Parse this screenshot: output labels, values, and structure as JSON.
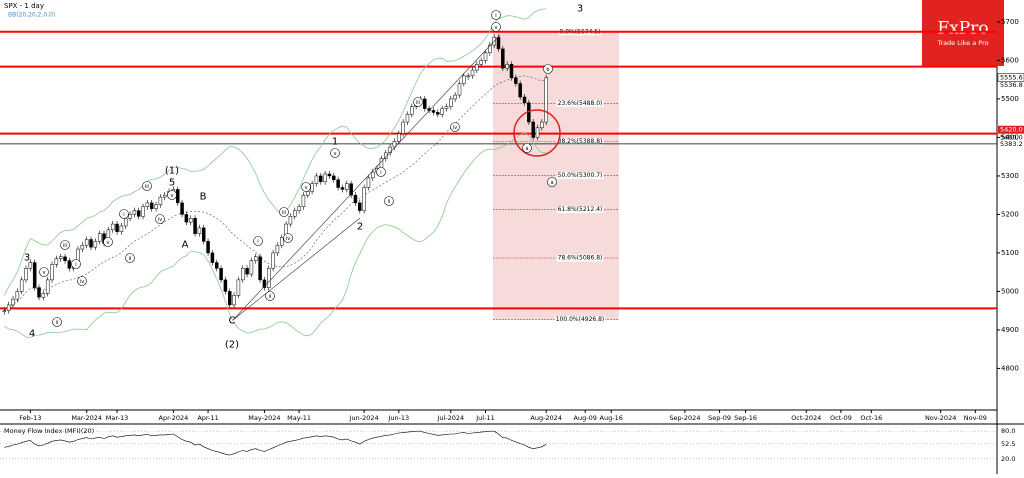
{
  "chart_data": {
    "type": "candlestick",
    "title": "SPX - 1 day",
    "indicator_label": "BB(20,20,2,0,0)",
    "closes": [
      4950,
      4965,
      4980,
      5000,
      5030,
      5060,
      5075,
      5010,
      4985,
      4995,
      5030,
      5070,
      5085,
      5090,
      5080,
      5060,
      5075,
      5110,
      5120,
      5135,
      5115,
      5130,
      5150,
      5125,
      5160,
      5175,
      5155,
      5170,
      5190,
      5200,
      5210,
      5195,
      5220,
      5230,
      5215,
      5225,
      5245,
      5250,
      5260,
      5265,
      5230,
      5200,
      5180,
      5190,
      5150,
      5165,
      5130,
      5100,
      5075,
      5060,
      5030,
      5000,
      4965,
      4990,
      5030,
      5060,
      5045,
      5080,
      5090,
      5030,
      5010,
      5060,
      5100,
      5120,
      5140,
      5175,
      5195,
      5210,
      5220,
      5250,
      5260,
      5280,
      5300,
      5285,
      5305,
      5300,
      5290,
      5270,
      5265,
      5280,
      5250,
      5230,
      5210,
      5270,
      5295,
      5310,
      5320,
      5345,
      5360,
      5375,
      5390,
      5410,
      5440,
      5460,
      5480,
      5490,
      5500,
      5475,
      5470,
      5465,
      5460,
      5475,
      5480,
      5500,
      5510,
      5540,
      5560,
      5560,
      5575,
      5590,
      5600,
      5620,
      5640,
      5660,
      5630,
      5580,
      5590,
      5555,
      5540,
      5505,
      5490,
      5440,
      5400,
      5425,
      5440,
      5555
    ],
    "xlim": [
      -1,
      229
    ],
    "xticks": [
      {
        "value": 6,
        "label": "Feb-13"
      },
      {
        "value": 19,
        "label": "Mar-2024"
      },
      {
        "value": 26,
        "label": "Mar-13"
      },
      {
        "value": 39,
        "label": "Apr-2024"
      },
      {
        "value": 47,
        "label": "Apr-11"
      },
      {
        "value": 60,
        "label": "May-2024"
      },
      {
        "value": 68,
        "label": "May-11"
      },
      {
        "value": 83,
        "label": "Jun-2024"
      },
      {
        "value": 91,
        "label": "Jun-13"
      },
      {
        "value": 103,
        "label": "Jul-2024"
      },
      {
        "value": 111,
        "label": "Jul-11"
      },
      {
        "value": 125,
        "label": "Aug-2024"
      },
      {
        "value": 134,
        "label": "Aug-09"
      },
      {
        "value": 140,
        "label": "Aug-16"
      },
      {
        "value": 157,
        "label": "Sep-2024"
      },
      {
        "value": 165,
        "label": "Sep-09"
      },
      {
        "value": 171,
        "label": "Sep-16"
      },
      {
        "value": 185,
        "label": "Oct-2024"
      },
      {
        "value": 193,
        "label": "Oct-09"
      },
      {
        "value": 200,
        "label": "Oct-16"
      },
      {
        "value": 216,
        "label": "Nov-2024"
      },
      {
        "value": 224,
        "label": "Nov-09"
      }
    ],
    "ylim": [
      4692,
      5757
    ],
    "yticks": [
      4800,
      4900,
      5000,
      5100,
      5200,
      5300,
      5400,
      5500,
      5600,
      5700
    ],
    "price_markers": [
      {
        "value": 5555.6,
        "label": "5555.6"
      },
      {
        "value": 5536.8,
        "label": "5536.8"
      },
      {
        "value": 5420.0,
        "label": "5420.0"
      },
      {
        "value": 5400.0,
        "label": "5400.0"
      },
      {
        "value": 5383.2,
        "label": "5383.2"
      }
    ],
    "levels": {
      "color": "#ff0000",
      "values": [
        5674.5,
        5584,
        5410,
        4956
      ]
    },
    "black_level": 5383.2,
    "fibonacci": {
      "labels": [
        "0.0%(5674.5)",
        "23.6%(5488.0)",
        "38.2%(5388.8)",
        "50.0%(5300.7)",
        "61.8%(5212.4)",
        "78.6%(5086.8)",
        "100.0%(4926.8)"
      ],
      "values": [
        5674.5,
        5488.0,
        5388.8,
        5300.7,
        5212.4,
        5086.8,
        4926.8
      ]
    },
    "annotations": [
      "3",
      "v",
      "4",
      "ii",
      "iii",
      "iv",
      "i",
      "v",
      "i",
      "ii",
      "iii",
      "iv",
      "(1)",
      "5",
      "v",
      "B",
      "A",
      "C",
      "(2)",
      "i",
      "ii",
      "iii",
      "iv",
      "v",
      "1",
      "v",
      "2",
      "i",
      "ii",
      "iii",
      "iv",
      "i",
      "v",
      "3",
      "a",
      "b",
      "a"
    ],
    "mfi": {
      "title": "Money Flow Index (MFI)(20)",
      "values": [
        45,
        47,
        50,
        52,
        55,
        58,
        60,
        52,
        48,
        50,
        54,
        58,
        60,
        61,
        59,
        56,
        58,
        62,
        64,
        66,
        63,
        65,
        67,
        64,
        68,
        70,
        67,
        68,
        70,
        71,
        72,
        70,
        72,
        73,
        70,
        71,
        72,
        72,
        73,
        74,
        68,
        62,
        58,
        56,
        50,
        52,
        46,
        42,
        38,
        36,
        33,
        30,
        28,
        31,
        35,
        38,
        36,
        40,
        42,
        38,
        36,
        40,
        44,
        48,
        52,
        56,
        58,
        60,
        62,
        65,
        66,
        68,
        70,
        68,
        70,
        69,
        67,
        63,
        61,
        63,
        59,
        56,
        52,
        58,
        62,
        65,
        67,
        69,
        71,
        72,
        74,
        76,
        77,
        78,
        79,
        80,
        80,
        77,
        75,
        73,
        71,
        72,
        73,
        74,
        74,
        76,
        77,
        75,
        76,
        77,
        78,
        79,
        80,
        80,
        74,
        66,
        65,
        60,
        57,
        53,
        50,
        45,
        42,
        44,
        46,
        52
      ],
      "ylim": [
        0,
        100
      ],
      "yticks": [
        {
          "value": 80,
          "label": "80.0"
        },
        {
          "value": 52.5,
          "label": "52.5"
        },
        {
          "value": 20,
          "label": "20.0"
        }
      ]
    }
  },
  "logo": {
    "brand": "FxPro",
    "tagline": "Trade Like a Pro"
  }
}
